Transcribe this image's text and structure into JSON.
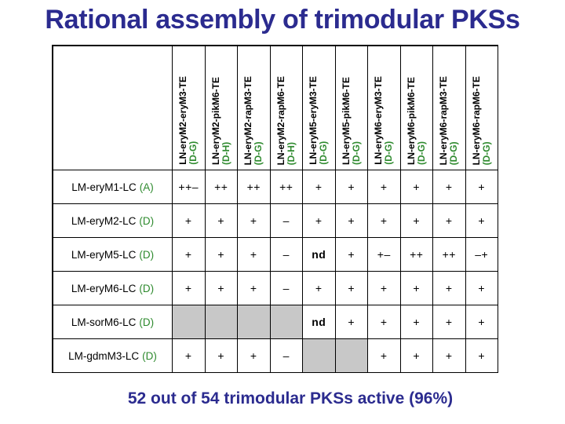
{
  "title": "Rational assembly of trimodular PKSs",
  "columns": [
    {
      "name": "LN-eryM2-eryM3-TE",
      "group": "(D-G)"
    },
    {
      "name": "LN-eryM2-pikM6-TE",
      "group": "(D-H)"
    },
    {
      "name": "LN-eryM2-rapM3-TE",
      "group": "(D-G)"
    },
    {
      "name": "LN-eryM2-rapM6-TE",
      "group": "(D-H)"
    },
    {
      "name": "LN-eryM5-eryM3-TE",
      "group": "(D-G)"
    },
    {
      "name": "LN-eryM5-pikM6-TE",
      "group": "(D-G)"
    },
    {
      "name": "LN-eryM6-eryM3-TE",
      "group": "(D-G)"
    },
    {
      "name": "LN-eryM6-pikM6-TE",
      "group": "(D-G)"
    },
    {
      "name": "LN-eryM6-rapM3-TE",
      "group": "(D-G)"
    },
    {
      "name": "LN-eryM6-rapM6-TE",
      "group": "(D-G)"
    }
  ],
  "rows": [
    {
      "name": "LM-eryM1-LC",
      "group": "(A)",
      "cells": [
        "++–",
        "++",
        "++",
        "++",
        "+",
        "+",
        "+",
        "+",
        "+",
        "+"
      ]
    },
    {
      "name": "LM-eryM2-LC",
      "group": "(D)",
      "cells": [
        "+",
        "+",
        "+",
        "–",
        "+",
        "+",
        "+",
        "+",
        "+",
        "+"
      ]
    },
    {
      "name": "LM-eryM5-LC",
      "group": "(D)",
      "cells": [
        "+",
        "+",
        "+",
        "–",
        "nd",
        "+",
        "+–",
        "++",
        "++",
        "–+"
      ]
    },
    {
      "name": "LM-eryM6-LC",
      "group": "(D)",
      "cells": [
        "+",
        "+",
        "+",
        "–",
        "+",
        "+",
        "+",
        "+",
        "+",
        "+"
      ]
    },
    {
      "name": "LM-sorM6-LC",
      "group": "(D)",
      "cells": [
        "",
        "",
        "",
        "",
        "nd",
        "+",
        "+",
        "+",
        "+",
        "+"
      ],
      "shaded": [
        0,
        1,
        2,
        3
      ]
    },
    {
      "name": "LM-gdmM3-LC",
      "group": "(D)",
      "cells": [
        "+",
        "+",
        "+",
        "–",
        "",
        "",
        "+",
        "+",
        "+",
        "+"
      ],
      "shaded": [
        4,
        5
      ]
    }
  ],
  "footer": "52 out of 54 trimodular PKSs active (96%)",
  "colors": {
    "title": "#2b2b8f",
    "group_label": "#2e8a2e",
    "shaded_cell": "#c8c8c8"
  }
}
